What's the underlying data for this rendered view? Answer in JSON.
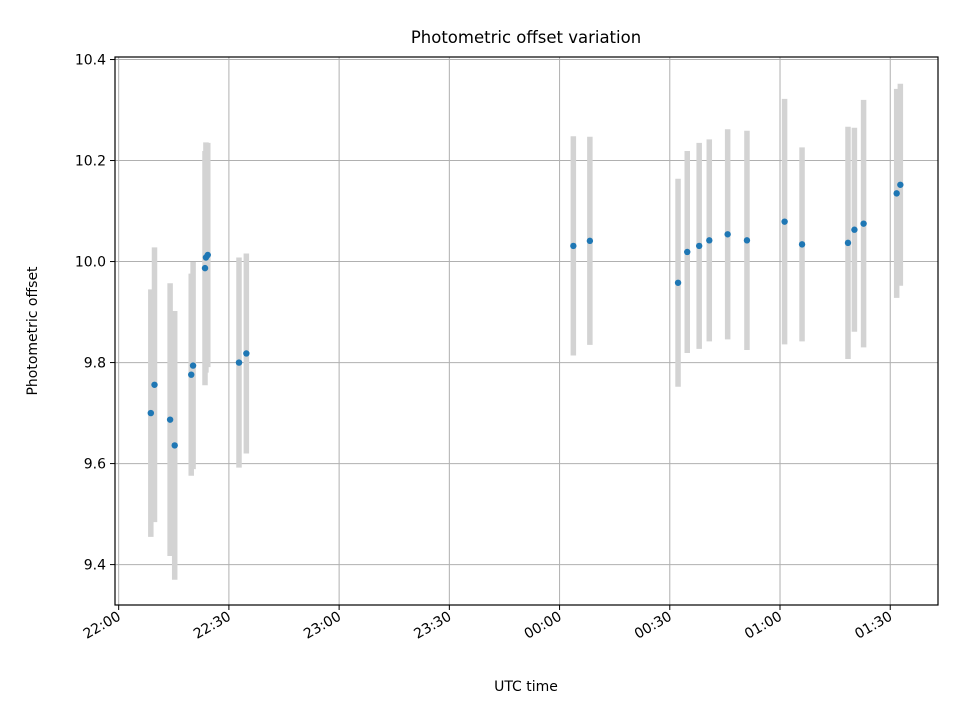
{
  "chart_data": {
    "type": "scatter",
    "title": "Photometric offset variation",
    "xlabel": "UTC time",
    "ylabel": "Photometric offset",
    "x_axis": {
      "kind": "time",
      "range": [
        "2000-01-01T21:59:00",
        "2000-01-02T01:43:00"
      ],
      "ticks": [
        {
          "t": "2000-01-01T22:00:00",
          "label": "22:00"
        },
        {
          "t": "2000-01-01T22:30:00",
          "label": "22:30"
        },
        {
          "t": "2000-01-01T23:00:00",
          "label": "23:00"
        },
        {
          "t": "2000-01-01T23:30:00",
          "label": "23:30"
        },
        {
          "t": "2000-01-02T00:00:00",
          "label": "00:00"
        },
        {
          "t": "2000-01-02T00:30:00",
          "label": "00:30"
        },
        {
          "t": "2000-01-02T01:00:00",
          "label": "01:00"
        },
        {
          "t": "2000-01-02T01:30:00",
          "label": "01:30"
        }
      ]
    },
    "y_axis": {
      "range": [
        9.32,
        10.405
      ],
      "ticks": [
        9.4,
        9.6,
        9.8,
        10.0,
        10.2,
        10.4
      ],
      "tick_labels": [
        "9.4",
        "9.6",
        "9.8",
        "10.0",
        "10.2",
        "10.4"
      ]
    },
    "grid": true,
    "marker_color": "#1f77b4",
    "errorbar_color": "#d3d3d3",
    "series": [
      {
        "points": [
          {
            "t": "2000-01-01T22:08:45",
            "y": 9.7,
            "err": 0.245
          },
          {
            "t": "2000-01-01T22:09:45",
            "y": 9.756,
            "err": 0.272
          },
          {
            "t": "2000-01-01T22:14:00",
            "y": 9.687,
            "err": 0.27
          },
          {
            "t": "2000-01-01T22:15:15",
            "y": 9.636,
            "err": 0.266
          },
          {
            "t": "2000-01-01T22:19:45",
            "y": 9.776,
            "err": 0.2
          },
          {
            "t": "2000-01-01T22:20:15",
            "y": 9.794,
            "err": 0.205
          },
          {
            "t": "2000-01-01T22:23:30",
            "y": 9.987,
            "err": 0.232
          },
          {
            "t": "2000-01-01T22:23:45",
            "y": 10.008,
            "err": 0.228
          },
          {
            "t": "2000-01-01T22:24:15",
            "y": 10.013,
            "err": 0.222
          },
          {
            "t": "2000-01-01T22:32:45",
            "y": 9.8,
            "err": 0.208
          },
          {
            "t": "2000-01-01T22:34:45",
            "y": 9.818,
            "err": 0.198
          },
          {
            "t": "2000-01-02T00:03:45",
            "y": 10.031,
            "err": 0.217
          },
          {
            "t": "2000-01-02T00:08:15",
            "y": 10.041,
            "err": 0.206
          },
          {
            "t": "2000-01-02T00:32:15",
            "y": 9.958,
            "err": 0.206
          },
          {
            "t": "2000-01-02T00:34:45",
            "y": 10.019,
            "err": 0.2
          },
          {
            "t": "2000-01-02T00:38:00",
            "y": 10.031,
            "err": 0.204
          },
          {
            "t": "2000-01-02T00:40:45",
            "y": 10.042,
            "err": 0.2
          },
          {
            "t": "2000-01-02T00:45:45",
            "y": 10.054,
            "err": 0.208
          },
          {
            "t": "2000-01-02T00:51:00",
            "y": 10.042,
            "err": 0.217
          },
          {
            "t": "2000-01-02T01:01:15",
            "y": 10.079,
            "err": 0.243
          },
          {
            "t": "2000-01-02T01:06:00",
            "y": 10.034,
            "err": 0.192
          },
          {
            "t": "2000-01-02T01:18:30",
            "y": 10.037,
            "err": 0.23
          },
          {
            "t": "2000-01-02T01:20:15",
            "y": 10.063,
            "err": 0.202
          },
          {
            "t": "2000-01-02T01:22:45",
            "y": 10.075,
            "err": 0.245
          },
          {
            "t": "2000-01-02T01:31:45",
            "y": 10.135,
            "err": 0.207
          },
          {
            "t": "2000-01-02T01:32:45",
            "y": 10.152,
            "err": 0.2
          }
        ]
      }
    ]
  }
}
